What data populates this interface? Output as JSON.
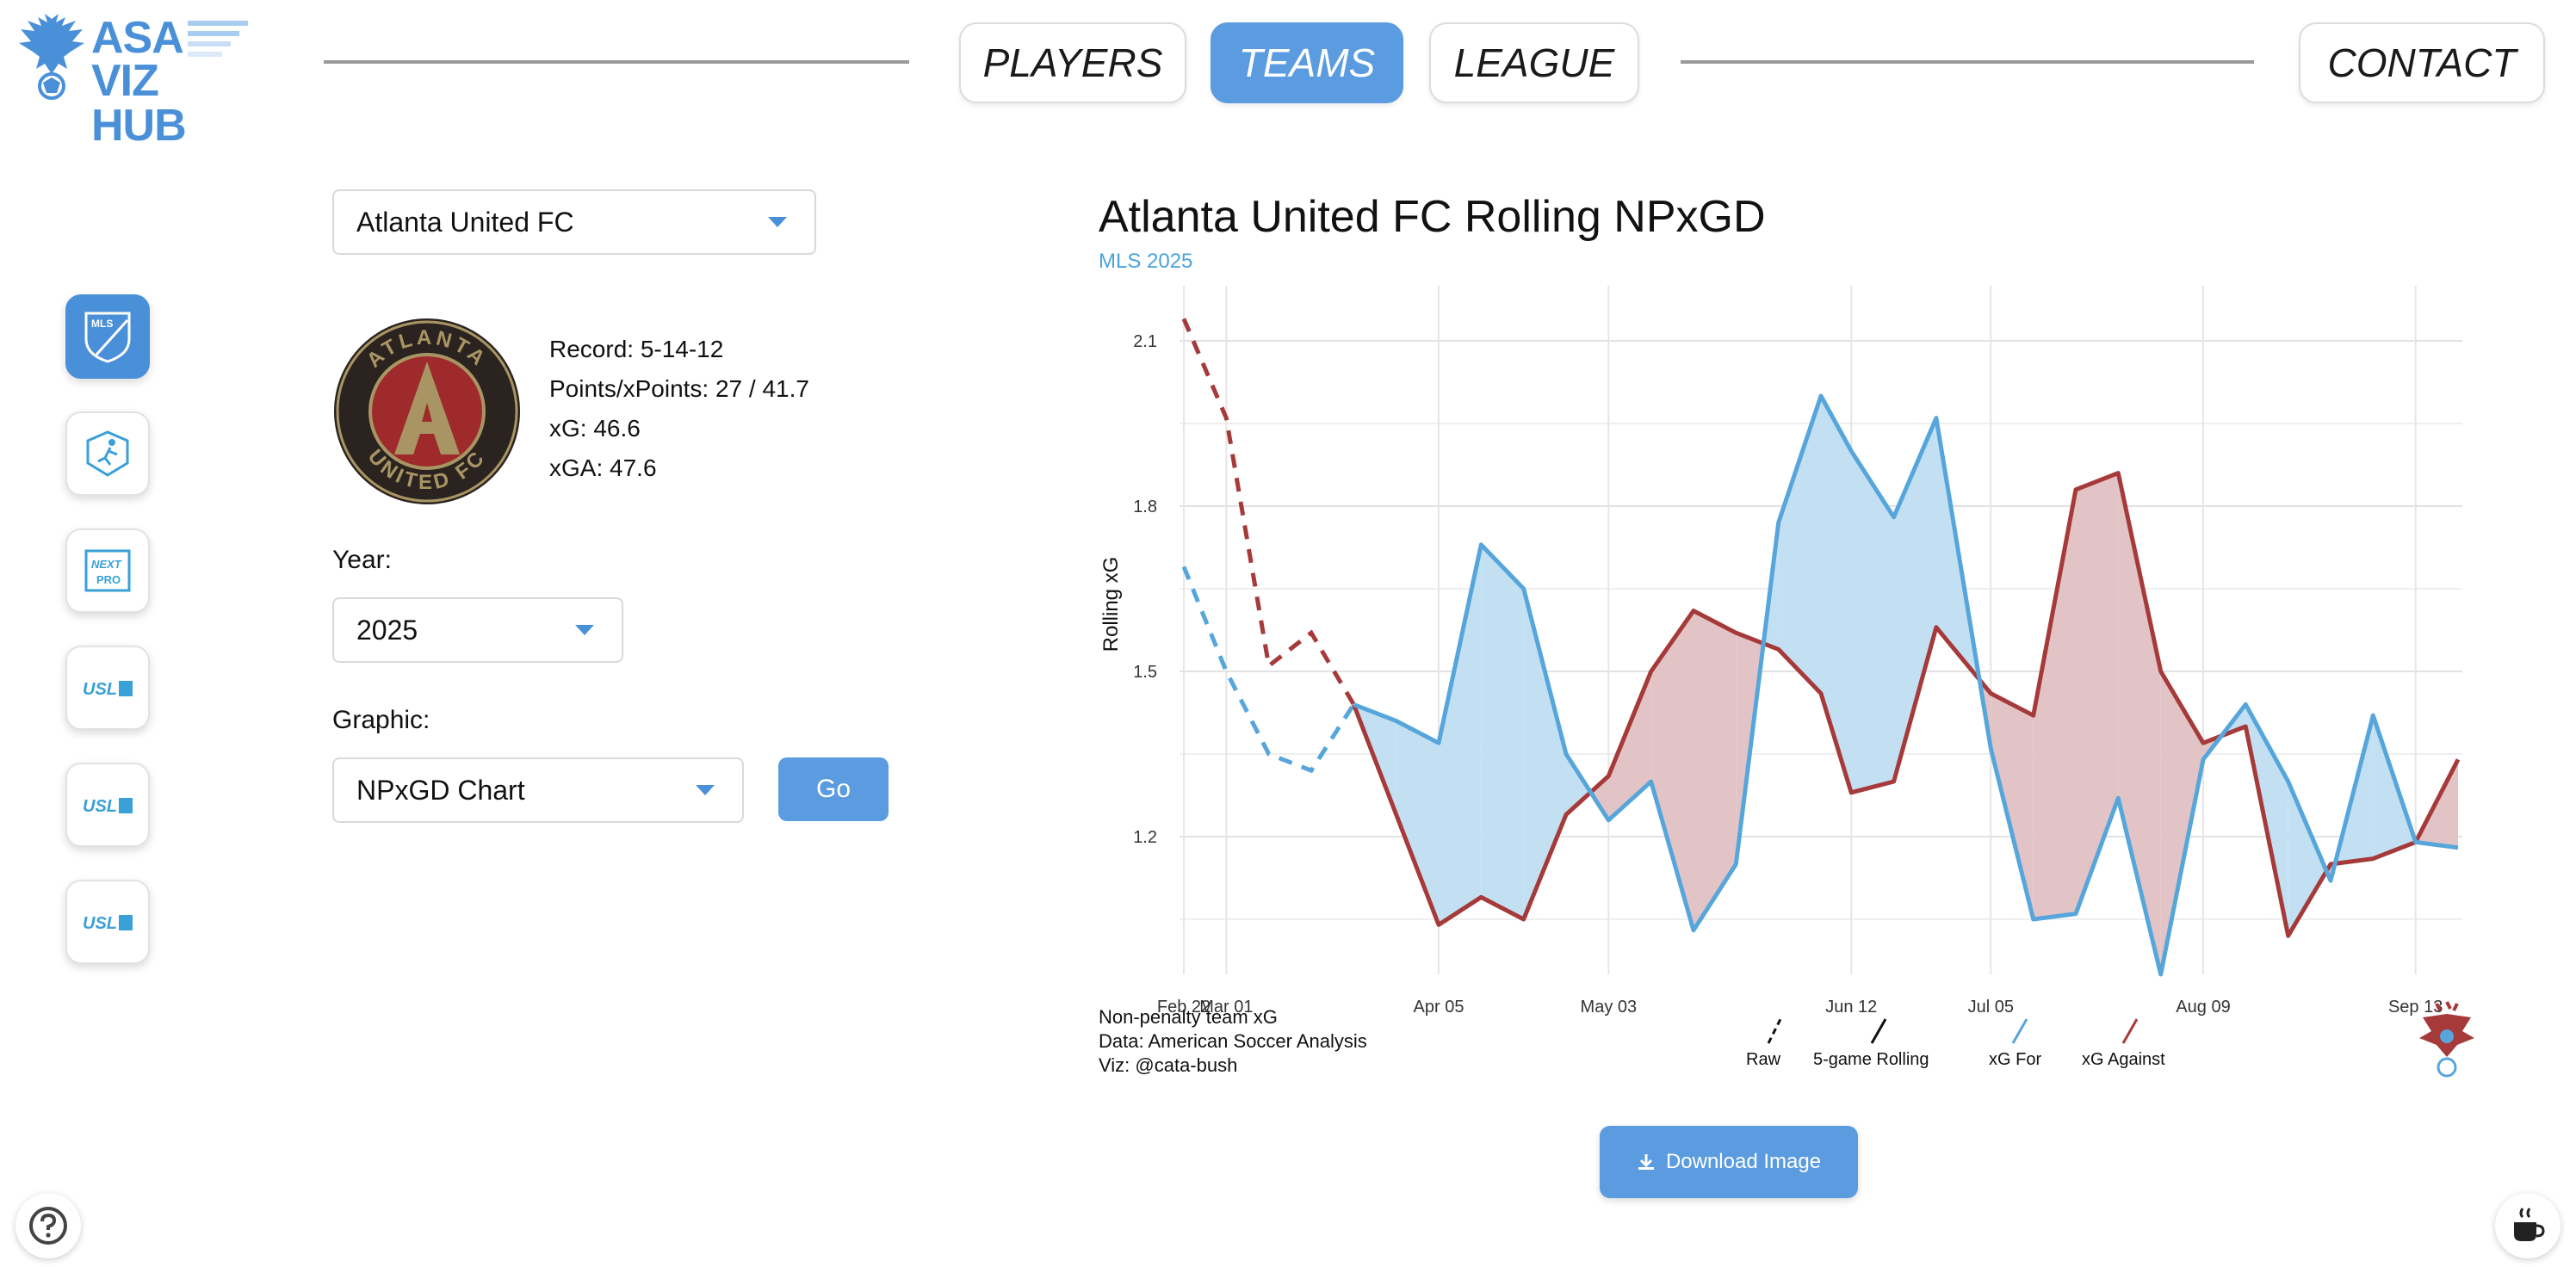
{
  "header": {
    "logo_line1": "ASA",
    "logo_line2": "VIZ HUB",
    "nav": [
      {
        "label": "PLAYERS",
        "active": false
      },
      {
        "label": "TEAMS",
        "active": true
      },
      {
        "label": "LEAGUE",
        "active": false
      }
    ],
    "contact_label": "CONTACT"
  },
  "leagues": [
    {
      "name": "mls-icon",
      "active": true
    },
    {
      "name": "nwsl-icon",
      "active": false
    },
    {
      "name": "mls-next-pro-icon",
      "active": false
    },
    {
      "name": "usl-championship-icon",
      "active": false
    },
    {
      "name": "usl-league-one-icon",
      "active": false
    },
    {
      "name": "usl-super-league-icon",
      "active": false
    }
  ],
  "controls": {
    "team": "Atlanta United FC",
    "year_label": "Year:",
    "year": "2025",
    "graphic_label": "Graphic:",
    "graphic": "NPxGD Chart",
    "go_label": "Go"
  },
  "team_stats": {
    "record": "Record: 5-14-12",
    "points": "Points/xPoints: 27 / 41.7",
    "xg": "xG: 46.6",
    "xga": "xGA: 47.6",
    "badge_text_top": "ATLANTA",
    "badge_text_bottom": "UNITED FC"
  },
  "chart": {
    "title": "Atlanta United FC Rolling NPxGD",
    "subtitle": "MLS 2025",
    "notes": [
      "Non-penalty team xG",
      "Data: American Soccer Analysis",
      "Viz: @cata-bush"
    ],
    "legend": [
      "Raw",
      "5-game Rolling",
      "xG For",
      "xG Against"
    ],
    "colors": {
      "for": "#56a6dc",
      "against": "#a63a3a",
      "for_fill": "#c3e0f3",
      "against_fill": "#e3c4c6"
    }
  },
  "chart_data": {
    "type": "line",
    "ylabel": "Rolling xG",
    "xlabel": "",
    "ylim": [
      0.95,
      2.2
    ],
    "yticks": [
      1.2,
      1.5,
      1.8,
      2.1
    ],
    "xticks": [
      "Feb 22",
      "Mar 01",
      "Apr 05",
      "May 03",
      "Jun 12",
      "Jul 05",
      "Aug 09",
      "Sep 13"
    ],
    "tick_labels_shown": [
      "Feb 22",
      "Mar 01",
      "Apr 05",
      "May 03",
      "Jun 12",
      "Jul 05",
      "Aug 09",
      "Sep 13"
    ],
    "x": [
      "2025-02-22",
      "2025-03-01",
      "2025-03-08",
      "2025-03-15",
      "2025-03-22",
      "2025-03-29",
      "2025-04-05",
      "2025-04-12",
      "2025-04-19",
      "2025-04-26",
      "2025-05-03",
      "2025-05-10",
      "2025-05-17",
      "2025-05-24",
      "2025-05-31",
      "2025-06-07",
      "2025-06-12",
      "2025-06-19",
      "2025-06-26",
      "2025-07-05",
      "2025-07-12",
      "2025-07-19",
      "2025-07-26",
      "2025-08-02",
      "2025-08-09",
      "2025-08-16",
      "2025-08-23",
      "2025-08-30",
      "2025-09-06",
      "2025-09-13",
      "2025-09-20"
    ],
    "raw_until_index": 4,
    "series": [
      {
        "name": "xG For",
        "values": [
          1.69,
          1.5,
          1.35,
          1.32,
          1.44,
          1.41,
          1.37,
          1.73,
          1.65,
          1.35,
          1.23,
          1.3,
          1.03,
          1.15,
          1.77,
          2.0,
          1.9,
          1.78,
          1.96,
          1.36,
          1.05,
          1.06,
          1.27,
          0.95,
          1.34,
          1.44,
          1.3,
          1.12,
          1.42,
          1.19,
          1.18
        ]
      },
      {
        "name": "xG Against",
        "values": [
          2.14,
          1.96,
          1.51,
          1.57,
          1.44,
          1.24,
          1.04,
          1.09,
          1.05,
          1.24,
          1.31,
          1.5,
          1.61,
          1.57,
          1.54,
          1.46,
          1.28,
          1.3,
          1.58,
          1.46,
          1.42,
          1.83,
          1.86,
          1.5,
          1.37,
          1.4,
          1.02,
          1.15,
          1.16,
          1.19,
          1.34
        ]
      }
    ]
  }
}
